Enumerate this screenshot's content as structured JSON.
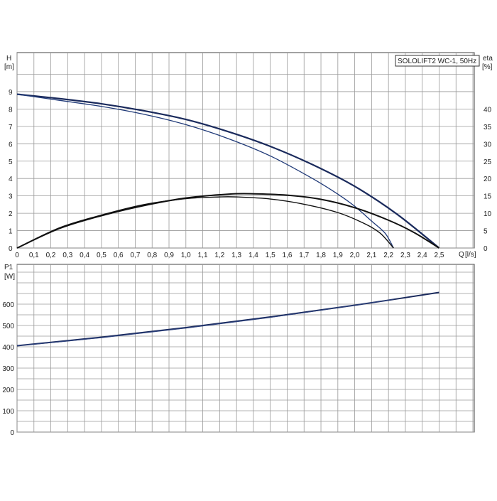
{
  "chart_data": [
    {
      "type": "line",
      "title": "SOLOLIFT2 WC-1, 50Hz",
      "xlabel": "Q [l/s]",
      "x_unit_label": "Q",
      "x_unit_bracket": "[l/s]",
      "ylabel_top": "H",
      "ylabel_unit": "[m]",
      "y2label_top": "eta",
      "y2label_unit": "[%]",
      "xlim": [
        0,
        2.5
      ],
      "ylim": [
        0,
        10
      ],
      "y2lim": [
        0,
        50
      ],
      "grid": true,
      "xticks": [
        "0",
        "0,1",
        "0,2",
        "0,3",
        "0,4",
        "0,5",
        "0,6",
        "0,7",
        "0,8",
        "0,9",
        "1,0",
        "1,1",
        "1,2",
        "1,3",
        "1,4",
        "1,5",
        "1,6",
        "1,7",
        "1,8",
        "1,9",
        "2,0",
        "2,1",
        "2,2",
        "2,3",
        "2,4",
        "2,5"
      ],
      "yticks": [
        "0",
        "1",
        "2",
        "3",
        "4",
        "5",
        "6",
        "7",
        "8",
        "9"
      ],
      "y2ticks": [
        "0",
        "5",
        "10",
        "15",
        "20",
        "25",
        "30",
        "35",
        "40"
      ],
      "series": [
        {
          "axis": "H",
          "x": [
            0,
            0.25,
            0.5,
            0.75,
            1.0,
            1.25,
            1.5,
            1.75,
            2.0,
            2.25,
            2.5
          ],
          "y": [
            8.85,
            8.6,
            8.3,
            7.9,
            7.4,
            6.7,
            5.85,
            4.8,
            3.55,
            1.95,
            0
          ]
        },
        {
          "axis": "H",
          "x": [
            0,
            0.25,
            0.5,
            0.75,
            1.0,
            1.25,
            1.5,
            1.75,
            1.9,
            2.0,
            2.1,
            2.18,
            2.23
          ],
          "y": [
            8.85,
            8.5,
            8.15,
            7.7,
            7.1,
            6.3,
            5.3,
            4.0,
            3.1,
            2.4,
            1.55,
            0.85,
            0
          ]
        },
        {
          "axis": "eta",
          "x": [
            0,
            0.25,
            0.5,
            0.75,
            1.0,
            1.25,
            1.4,
            1.6,
            1.8,
            2.0,
            2.2,
            2.35,
            2.5
          ],
          "y": [
            0,
            5.6,
            9.3,
            12.2,
            14.4,
            15.5,
            15.6,
            15.2,
            14.0,
            11.6,
            8.0,
            4.5,
            0
          ]
        },
        {
          "axis": "eta",
          "x": [
            0,
            0.25,
            0.5,
            0.75,
            1.0,
            1.2,
            1.3,
            1.5,
            1.7,
            1.9,
            2.05,
            2.15,
            2.23
          ],
          "y": [
            0,
            5.8,
            9.5,
            12.5,
            14.2,
            14.7,
            14.7,
            14.1,
            12.6,
            10.2,
            7.2,
            4.3,
            0
          ]
        }
      ]
    },
    {
      "type": "line",
      "ylabel_top": "P1",
      "ylabel_unit": "[W]",
      "xlim": [
        0,
        2.5
      ],
      "ylim": [
        0,
        700
      ],
      "grid": true,
      "yticks": [
        "0",
        "100",
        "200",
        "300",
        "400",
        "500",
        "600"
      ],
      "series": [
        {
          "x": [
            0,
            0.5,
            1.0,
            1.5,
            2.0,
            2.5
          ],
          "y": [
            405,
            445,
            490,
            540,
            595,
            655
          ]
        },
        {
          "x": [
            0,
            0.5,
            1.0,
            1.5,
            2.0,
            2.23
          ],
          "y": [
            405,
            443,
            488,
            538,
            595,
            623
          ]
        }
      ]
    }
  ]
}
